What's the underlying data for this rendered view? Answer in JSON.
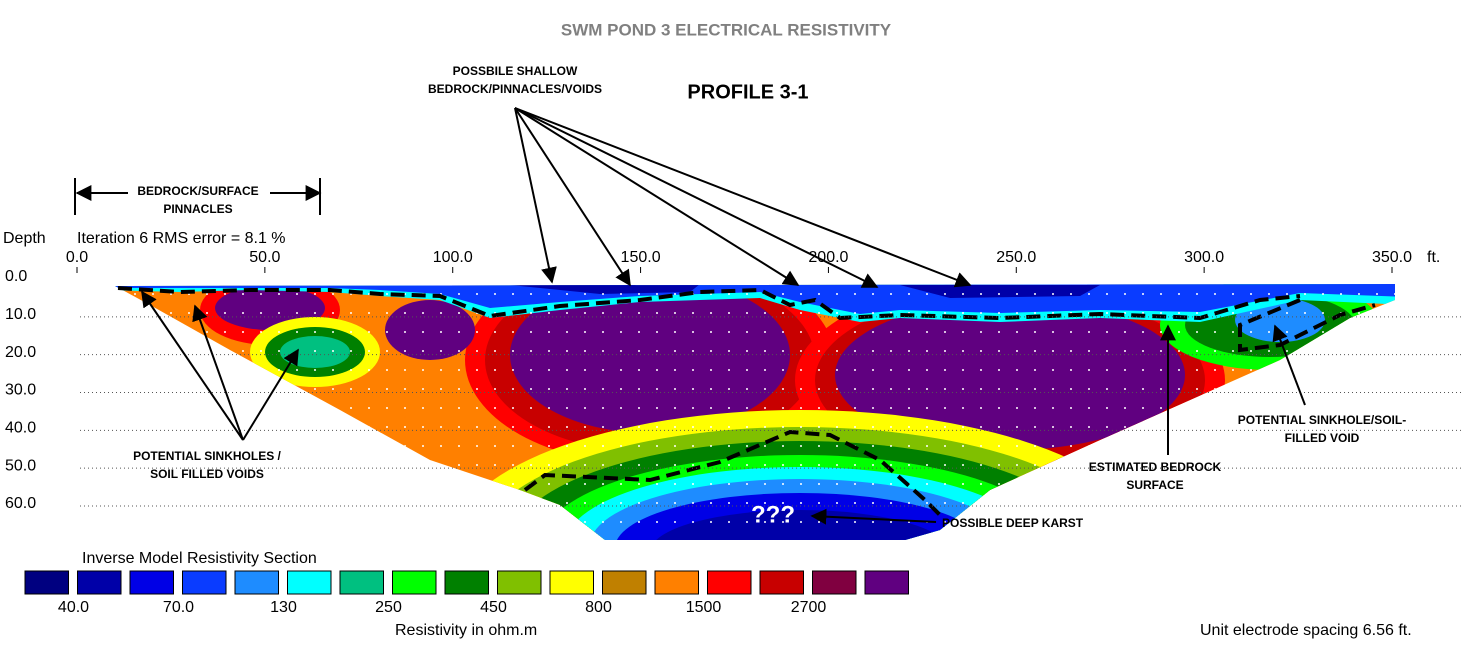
{
  "chart_data": {
    "type": "contour",
    "title": "SWM POND 3 ELECTRICAL RESISTIVITY",
    "subtitle": "PROFILE 3-1",
    "y_label": "Depth",
    "note": "Iteration 6 RMS error = 8.1 %",
    "x_unit": "ft.",
    "xlim": [
      0,
      350
    ],
    "xticks": [
      {
        "value": 0,
        "label": "0.0"
      },
      {
        "value": 50,
        "label": "50.0"
      },
      {
        "value": 100,
        "label": "100.0"
      },
      {
        "value": 150,
        "label": "150.0"
      },
      {
        "value": 200,
        "label": "200.0"
      },
      {
        "value": 250,
        "label": "250.0"
      },
      {
        "value": 300,
        "label": "300.0"
      },
      {
        "value": 350,
        "label": "350.0"
      }
    ],
    "ylim": [
      0,
      60
    ],
    "yticks": [
      {
        "value": 0,
        "label": "0.0"
      },
      {
        "value": 10,
        "label": "10.0"
      },
      {
        "value": 20,
        "label": "20.0"
      },
      {
        "value": 30,
        "label": "30.0"
      },
      {
        "value": 40,
        "label": "40.0"
      },
      {
        "value": 50,
        "label": "50.0"
      },
      {
        "value": 60,
        "label": "60.0"
      }
    ],
    "grid": true,
    "legend": {
      "title": "Inverse Model Resistivity Section",
      "colors": [
        "#000080",
        "#0000a8",
        "#0000e6",
        "#0a3cff",
        "#1e8cff",
        "#00ffff",
        "#00c080",
        "#00ff00",
        "#008000",
        "#80c000",
        "#ffff00",
        "#c08000",
        "#ff8000",
        "#ff0000",
        "#c80000",
        "#800040",
        "#600080"
      ],
      "ticks": [
        {
          "value": 40,
          "label": "40.0"
        },
        {
          "value": 70,
          "label": "70.0"
        },
        130,
        250,
        450,
        800,
        1500,
        2700
      ],
      "label": "Resistivity in ohm.m"
    },
    "footnote": "Unit electrode spacing 6.56 ft.",
    "annotations": [
      {
        "lines": [
          "POSSBILE SHALLOW",
          "BEDROCK/PINNACLES/VOIDS"
        ]
      },
      {
        "lines": [
          "BEDROCK/SURFACE",
          "PINNACLES"
        ]
      },
      {
        "lines": [
          "POTENTIAL SINKHOLES /",
          "SOIL FILLED VOIDS"
        ]
      },
      {
        "lines": [
          "ESTIMATED BEDROCK",
          "SURFACE"
        ]
      },
      {
        "lines": [
          "POTENTIAL SINKHOLE/SOIL-",
          "FILLED VOID"
        ]
      },
      {
        "lines": [
          "POSSIBLE DEEP KARST"
        ]
      },
      {
        "lines": [
          "???"
        ]
      }
    ]
  }
}
